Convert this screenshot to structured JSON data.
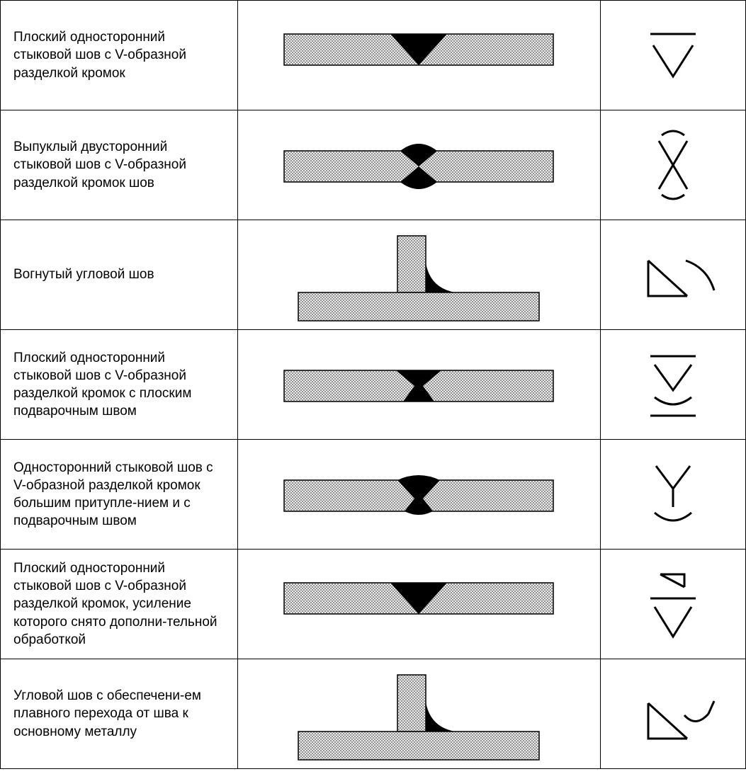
{
  "table": {
    "border_color": "#000000",
    "background": "#ffffff",
    "text_color": "#000000",
    "font_size": 19,
    "hatch_pattern": {
      "spacing": 4,
      "stroke": "#5a5a5a",
      "stroke_width": 0.6,
      "background": "#f8f8f8"
    },
    "fill_black": "#000000",
    "columns": [
      "description",
      "cross_section_illustration",
      "weld_symbol"
    ],
    "rows": [
      {
        "description": "Плоский односторонний стыковой шов с V-образной разделкой кромок",
        "illustration_type": "butt_v_single_flat",
        "symbol_type": "v_line_above"
      },
      {
        "description": "Выпуклый двусторонний стыковой шов с V-образной разделкой кромок шов",
        "illustration_type": "butt_v_double_convex",
        "symbol_type": "x_with_arcs"
      },
      {
        "description": "Вогнутый угловой шов",
        "illustration_type": "fillet_concave",
        "symbol_type": "triangle_concave_arc"
      },
      {
        "description": "Плоский односторонний стыковой шов с V-образной разделкой кромок с плоским подварочным швом",
        "illustration_type": "butt_v_with_flat_backing",
        "symbol_type": "v_line_above_arc_below_line"
      },
      {
        "description": "Односторонний стыковой шов с V-образной разделкой кромок большим притупле-нием и с подварочным швом",
        "illustration_type": "butt_y_with_backing",
        "symbol_type": "y_arc_below"
      },
      {
        "description": "Плоский односторонний стыковой шов с V-образной разделкой кромок, усиление которого снято дополни-тельной обработкой",
        "illustration_type": "butt_v_single_flat",
        "symbol_type": "v_line_small_tri_above"
      },
      {
        "description": "Угловой шов с обеспечени-ем плавного перехода от шва к основному металлу",
        "illustration_type": "fillet_smooth",
        "symbol_type": "triangle_smooth_arc"
      }
    ]
  }
}
